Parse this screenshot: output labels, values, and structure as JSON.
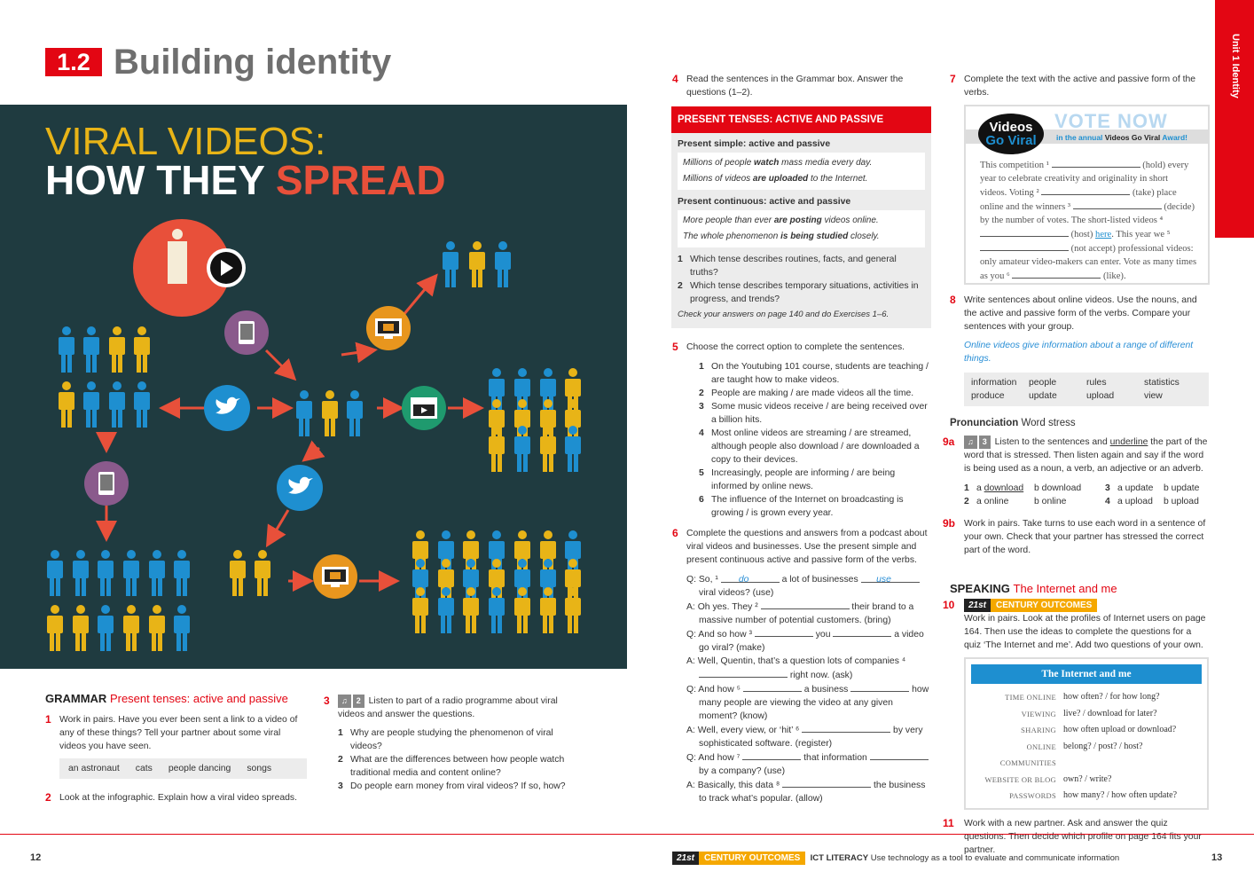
{
  "header": {
    "unit_num": "1.2",
    "title": "Building identity",
    "side_tab": "Unit 1 Identity"
  },
  "infographic": {
    "line1": "VIRAL VIDEOS:",
    "line2a": "HOW THEY ",
    "line2b": "SPREAD",
    "colors": {
      "bg": "#1f3b40",
      "yellow": "#e8b417",
      "red": "#e8503a",
      "blue": "#1e8fd0",
      "purple": "#8a5a8c",
      "orange": "#e8961e",
      "green": "#1f9a6e"
    },
    "icons": [
      "person-play-icon",
      "tablet-icon",
      "mail-screen-icon",
      "twitter-bird-icon",
      "video-window-icon",
      "tablet-icon",
      "twitter-bird-icon",
      "mail-screen-icon"
    ]
  },
  "grammar": {
    "heading": "GRAMMAR",
    "subheading": "Present tenses: active and passive",
    "ex1": {
      "num": "1",
      "text": "Work in pairs. Have you ever been sent a link to a video of any of these things? Tell your partner about some viral videos you have seen.",
      "words": [
        "an astronaut",
        "cats",
        "people dancing",
        "songs"
      ]
    },
    "ex2": {
      "num": "2",
      "text": "Look at the infographic. Explain how a viral video spreads."
    },
    "ex3": {
      "num": "3",
      "track": "2",
      "text": "Listen to part of a radio programme about viral videos and answer the questions.",
      "items": [
        {
          "n": "1",
          "t": "Why are people studying the phenomenon of viral videos?"
        },
        {
          "n": "2",
          "t": "What are the differences between how people watch traditional media and content online?"
        },
        {
          "n": "3",
          "t": "Do people earn money from viral videos? If so, how?"
        }
      ]
    }
  },
  "ex4": {
    "num": "4",
    "text": "Read the sentences in the Grammar box. Answer the questions (1–2).",
    "box_title": "PRESENT TENSES: ACTIVE AND PASSIVE",
    "s1_title": "Present simple: active and passive",
    "s1_a1": "Millions of people ",
    "s1_a2": "watch",
    "s1_a3": " mass media every day.",
    "s1_b1": "Millions of videos ",
    "s1_b2": "are uploaded",
    "s1_b3": " to the Internet.",
    "s2_title": "Present continuous: active and passive",
    "s2_a1": "More people than ever ",
    "s2_a2": "are posting",
    "s2_a3": " videos online.",
    "s2_b1": "The whole phenomenon ",
    "s2_b2": "is being studied",
    "s2_b3": " closely.",
    "q": [
      {
        "n": "1",
        "t": "Which tense describes routines, facts, and general truths?"
      },
      {
        "n": "2",
        "t": "Which tense describes temporary situations, activities in progress, and trends?"
      }
    ],
    "check": "Check your answers on page 140 and do Exercises 1–6."
  },
  "ex5": {
    "num": "5",
    "text": "Choose the correct option to complete the sentences.",
    "items": [
      {
        "n": "1",
        "t": "On the Youtubing 101 course, students are teaching / are taught how to make videos."
      },
      {
        "n": "2",
        "t": "People are making / are made videos all the time."
      },
      {
        "n": "3",
        "t": "Some music videos receive / are being received over a billion hits."
      },
      {
        "n": "4",
        "t": "Most online videos are streaming / are streamed, although people also download / are downloaded a copy to their devices."
      },
      {
        "n": "5",
        "t": "Increasingly, people are informing / are being informed by online news."
      },
      {
        "n": "6",
        "t": "The influence of the Internet on broadcasting is growing / is grown every year."
      }
    ]
  },
  "ex6": {
    "num": "6",
    "text": "Complete the questions and answers from a podcast about viral videos and businesses. Use the present simple and present continuous active and passive form of the verbs.",
    "ans1": "do",
    "ans1b": "use",
    "lines": [
      {
        "a": "Q: So, ¹ ",
        "b": " a lot of businesses ",
        "c": "viral videos? (use)"
      },
      {
        "a": "A: Oh yes. They ² ",
        "b": " their brand to a massive number of potential customers. (bring)"
      },
      {
        "a": "Q: And so how ³ ",
        "b": " you ",
        "c": " a video go viral? (make)"
      },
      {
        "a": "A: Well, Quentin, that’s a question lots of companies ⁴ ",
        "b": " right now. (ask)"
      },
      {
        "a": "Q: And how ⁵ ",
        "b": " a business ",
        "c": " how many people are viewing the video at any given moment? (know)"
      },
      {
        "a": "A: Well, every view, or ‘hit’ ⁶ ",
        "b": " by very sophisticated software. (register)"
      },
      {
        "a": "Q: And how ⁷ ",
        "b": " that information ",
        "c": " by a company? (use)"
      },
      {
        "a": "A: Basically, this data ⁸ ",
        "b": " the business to track what’s popular. (allow)"
      }
    ]
  },
  "ex7": {
    "num": "7",
    "text": "Complete the text with the active and passive form of the verbs.",
    "logo1": "Videos",
    "logo2": "Go Viral",
    "vote": "VOTE NOW",
    "tag1": "in the annual ",
    "tag2": "Videos Go Viral",
    "tag3": " Award!",
    "p1": "This competition ¹ ",
    "p1b": " (hold) every year to celebrate creativity and originality in short videos. Voting ² ",
    "p2b": " (take) place online and the winners ³ ",
    "p3b": " (decide) by the number of votes. The short-listed videos ⁴ ",
    "p4b": " (host) ",
    "link": "here",
    "p4c": ". This year we ⁵ ",
    "p5b": " (not accept) professional videos: only amateur video-makers can enter. Vote as many times as you ⁶ ",
    "p6b": " (like)."
  },
  "ex8": {
    "num": "8",
    "text": "Write sentences about online videos. Use the nouns, and the active and passive form of the verbs. Compare your sentences with your group.",
    "example": "Online videos give information about a range of different things.",
    "words": [
      [
        "information",
        "produce"
      ],
      [
        "people",
        "update"
      ],
      [
        "rules",
        "upload"
      ],
      [
        "statistics",
        "view"
      ]
    ]
  },
  "pron": {
    "heading": "Pronunciation",
    "sub": "Word stress",
    "ex9a": {
      "num": "9a",
      "track": "3",
      "text1": "Listen to the sentences and ",
      "u": "underline",
      "text2": " the part of the word that is stressed. Then listen again and say if the word is being used as a noun, a verb, an adjective or an adverb."
    },
    "rows": [
      [
        "1",
        "a download",
        "b download",
        "3",
        "a update",
        "b update"
      ],
      [
        "2",
        "a online",
        "b online",
        "4",
        "a upload",
        "b upload"
      ]
    ],
    "ex9b": {
      "num": "9b",
      "text": "Work in pairs. Take turns to use each word in a sentence of your own. Check that your partner has stressed the correct part of the word."
    }
  },
  "speaking": {
    "heading": "SPEAKING",
    "sub": "The Internet and me",
    "ex10": {
      "num": "10",
      "c21a": "21st",
      "c21b": "CENTURY OUTCOMES",
      "text": "Work in pairs. Look at the profiles of Internet users on page 164. Then use the ideas to complete the questions for a quiz ‘The Internet and me’. Add two questions of your own."
    },
    "quiz_title": "The Internet and me",
    "quiz": [
      [
        "TIME ONLINE",
        "how often? / for how long?"
      ],
      [
        "VIEWING",
        "live? / download for later?"
      ],
      [
        "SHARING",
        "how often upload or download?"
      ],
      [
        "ONLINE COMMUNITIES",
        "belong? / post? / host?"
      ],
      [
        "WEBSITE OR BLOG",
        "own? / write?"
      ],
      [
        "PASSWORDS",
        "how many? / how often update?"
      ]
    ],
    "ex11": {
      "num": "11",
      "text": "Work with a new partner. Ask and answer the quiz questions. Then decide which profile on page 164 fits your partner."
    }
  },
  "footer": {
    "page_left": "12",
    "page_right": "13",
    "c21a": "21st",
    "c21b": "CENTURY OUTCOMES",
    "ict": "ICT LITERACY",
    "ict_text": "Use technology as a tool to evaluate and communicate information"
  }
}
